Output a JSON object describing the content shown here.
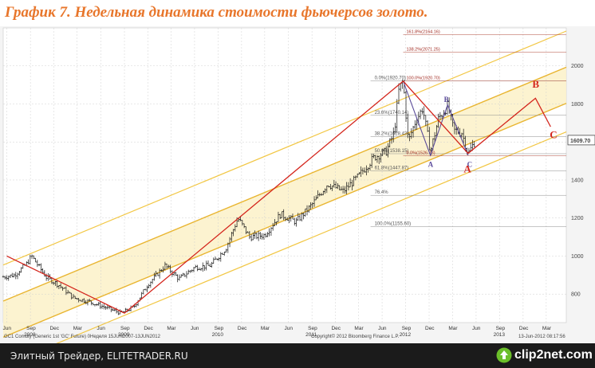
{
  "title": "График 7.   Недельная динамика стоимости фьючерсов золото.",
  "chart_data": {
    "type": "candlestick",
    "x_start": "2007-06-01",
    "x_end": "2013-06-01",
    "ylim": [
      650,
      2200
    ],
    "yticks": [
      800,
      1000,
      1200,
      1400,
      1600,
      1800,
      2000
    ],
    "month_ticks": [
      {
        "date": "2007-06-15",
        "label": "Jun"
      },
      {
        "date": "2007-09-15",
        "label": "Sep"
      },
      {
        "date": "2007-12-15",
        "label": "Dec"
      },
      {
        "date": "2008-03-15",
        "label": "Mar"
      },
      {
        "date": "2008-06-15",
        "label": "Jun"
      },
      {
        "date": "2008-09-15",
        "label": "Sep"
      },
      {
        "date": "2008-12-15",
        "label": "Dec"
      },
      {
        "date": "2009-03-15",
        "label": "Mar"
      },
      {
        "date": "2009-06-15",
        "label": "Jun"
      },
      {
        "date": "2009-09-15",
        "label": "Sep"
      },
      {
        "date": "2009-12-15",
        "label": "Dec"
      },
      {
        "date": "2010-03-15",
        "label": "Mar"
      },
      {
        "date": "2010-06-15",
        "label": "Jun"
      },
      {
        "date": "2010-09-15",
        "label": "Sep"
      },
      {
        "date": "2010-12-15",
        "label": "Dec"
      },
      {
        "date": "2011-03-15",
        "label": "Mar"
      },
      {
        "date": "2011-06-15",
        "label": "Jun"
      },
      {
        "date": "2011-09-15",
        "label": "Sep"
      },
      {
        "date": "2011-12-15",
        "label": "Dec"
      },
      {
        "date": "2012-03-15",
        "label": "Mar"
      },
      {
        "date": "2012-06-15",
        "label": "Jun"
      },
      {
        "date": "2012-09-15",
        "label": "Sep"
      },
      {
        "date": "2012-12-15",
        "label": "Dec"
      },
      {
        "date": "2013-03-15",
        "label": "Mar"
      }
    ],
    "year_labels": [
      {
        "date": "2007-09-15",
        "label": "2008"
      },
      {
        "date": "2008-09-15",
        "label": "2009"
      },
      {
        "date": "2009-09-15",
        "label": "2010"
      },
      {
        "date": "2010-09-15",
        "label": "2011"
      },
      {
        "date": "2011-09-15",
        "label": "2012"
      },
      {
        "date": "2012-09-15",
        "label": "2013"
      }
    ],
    "price_path": [
      [
        "2007-06-01",
        890
      ],
      [
        "2007-07-15",
        900
      ],
      [
        "2007-09-01",
        960
      ],
      [
        "2007-09-20",
        1000
      ],
      [
        "2007-10-15",
        950
      ],
      [
        "2007-11-15",
        890
      ],
      [
        "2008-01-01",
        850
      ],
      [
        "2008-03-01",
        780
      ],
      [
        "2008-05-01",
        760
      ],
      [
        "2008-07-01",
        730
      ],
      [
        "2008-09-01",
        700
      ],
      [
        "2008-10-20",
        730
      ],
      [
        "2008-12-15",
        850
      ],
      [
        "2009-02-20",
        950
      ],
      [
        "2009-04-15",
        880
      ],
      [
        "2009-06-15",
        940
      ],
      [
        "2009-08-15",
        950
      ],
      [
        "2009-10-15",
        1040
      ],
      [
        "2009-12-01",
        1200
      ],
      [
        "2010-01-15",
        1100
      ],
      [
        "2010-03-15",
        1110
      ],
      [
        "2010-05-15",
        1220
      ],
      [
        "2010-07-15",
        1180
      ],
      [
        "2010-09-15",
        1270
      ],
      [
        "2010-11-15",
        1380
      ],
      [
        "2011-01-15",
        1340
      ],
      [
        "2011-03-15",
        1420
      ],
      [
        "2011-05-15",
        1520
      ],
      [
        "2011-07-01",
        1550
      ],
      [
        "2011-08-01",
        1650
      ],
      [
        "2011-08-20",
        1880
      ],
      [
        "2011-09-05",
        1920
      ],
      [
        "2011-09-25",
        1600
      ],
      [
        "2011-10-20",
        1700
      ],
      [
        "2011-11-20",
        1780
      ],
      [
        "2011-12-20",
        1550
      ],
      [
        "2012-01-20",
        1720
      ],
      [
        "2012-02-25",
        1790
      ],
      [
        "2012-03-20",
        1660
      ],
      [
        "2012-04-20",
        1650
      ],
      [
        "2012-05-15",
        1540
      ],
      [
        "2012-06-13",
        1610
      ]
    ],
    "last_price": "1609.70",
    "fib_levels": [
      {
        "value": 1920.7,
        "label": "0.0%(1920.70)",
        "start": "2011-05-01"
      },
      {
        "value": 1740.14,
        "label": "23.6%(1740.14)",
        "start": "2011-05-01"
      },
      {
        "value": 1628.43,
        "label": "38.2%(1628.43)",
        "start": "2011-05-01"
      },
      {
        "value": 1538.15,
        "label": "50.0%(1538.15)",
        "start": "2011-05-01"
      },
      {
        "value": 1447.87,
        "label": "61.8%(1447.87)",
        "start": "2011-05-01"
      },
      {
        "value": 1319.4,
        "label": "76.4%",
        "start": "2011-05-01"
      },
      {
        "value": 1155.6,
        "label": "100.0%(1155.60)",
        "start": "2011-05-01"
      }
    ],
    "fib_ext_levels": [
      {
        "value": 2164.16,
        "label": "161.8%(2164.16)",
        "start": "2011-09-05"
      },
      {
        "value": 2071.25,
        "label": "138.2%(2071.25)",
        "start": "2011-09-05"
      },
      {
        "value": 1920.7,
        "label": "100.0%(1920.70)",
        "start": "2011-09-05"
      },
      {
        "value": 1526.73,
        "label": "0.0%(1526.73)",
        "start": "2011-09-05"
      }
    ],
    "channel": {
      "slope_per_year": 205,
      "anchor_date": "2008-09-01",
      "lines": [
        {
          "base": 680,
          "style": "outer"
        },
        {
          "base": 830,
          "style": "inner"
        },
        {
          "base": 1020,
          "style": "inner"
        },
        {
          "base": 1210,
          "style": "outer"
        }
      ]
    },
    "red_path": [
      [
        "2007-06-15",
        1000
      ],
      [
        "2008-09-15",
        700
      ],
      [
        "2011-09-05",
        1920
      ],
      [
        "2012-05-15",
        1540
      ],
      [
        "2013-02-01",
        1830
      ],
      [
        "2013-04-01",
        1680
      ]
    ],
    "small_abc_path": [
      [
        "2011-09-05",
        1920
      ],
      [
        "2011-12-20",
        1530
      ],
      [
        "2012-02-25",
        1795
      ],
      [
        "2012-05-15",
        1530
      ]
    ],
    "labels_small": [
      {
        "date": "2011-12-20",
        "value": 1470,
        "text": "A"
      },
      {
        "date": "2012-02-20",
        "value": 1810,
        "text": "B"
      },
      {
        "date": "2012-05-20",
        "value": 1470,
        "text": "C"
      }
    ],
    "labels_red": [
      {
        "date": "2012-05-10",
        "value": 1440,
        "text": "A"
      },
      {
        "date": "2013-02-01",
        "value": 1885,
        "text": "B"
      },
      {
        "date": "2013-04-10",
        "value": 1620,
        "text": "C"
      }
    ]
  },
  "footer": {
    "left": "GC1 Comdty (Generic 1st 'GC' Future) 0Неделя 15JUN2007-13JUN2012",
    "center": "Copyright© 2012 Bloomberg Finance L.P.",
    "right": "13-Jun-2012 08:17:56"
  },
  "bottom": {
    "trader": "Элитный Трейдер, ELITETRADER.RU",
    "logo": "clip2net.com"
  }
}
